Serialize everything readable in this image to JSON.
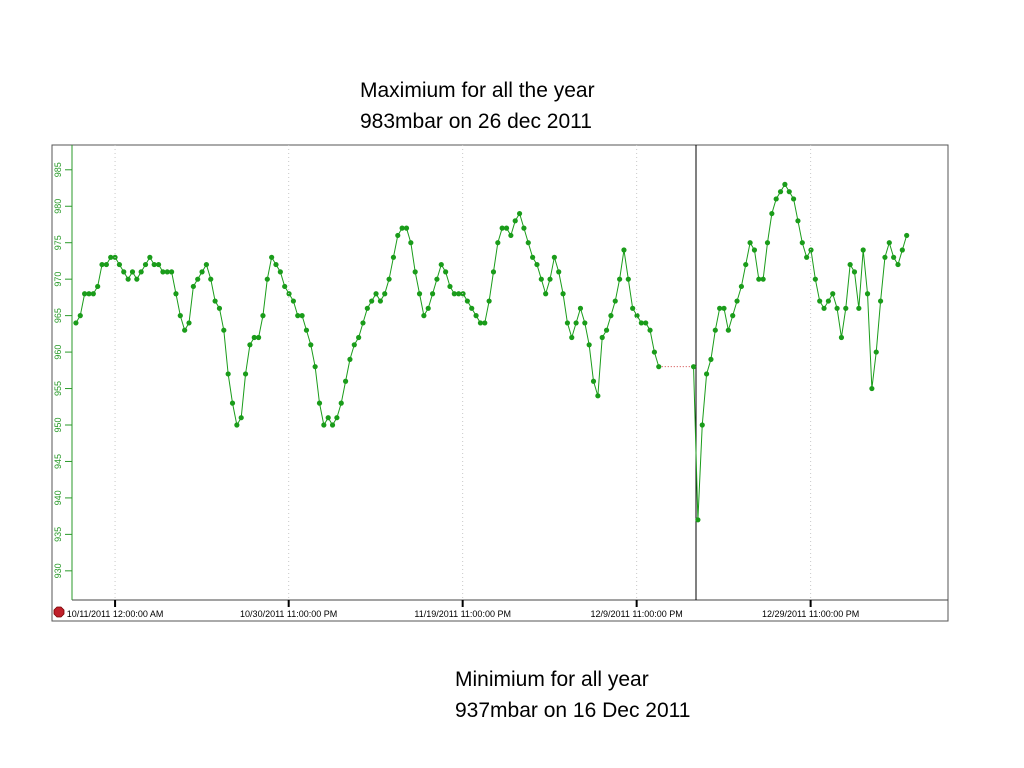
{
  "chart_data": {
    "type": "line",
    "annotations": [
      "Maximium for all the year",
      "983mbar on 26 dec 2011",
      "Minimium for all year",
      "937mbar on 16 Dec 2011"
    ],
    "color": "#1a9c1a",
    "gap_color": "#d04040",
    "grid": true,
    "xlim": [
      "2011-10-03T18:00",
      "2012-01-14T18:00"
    ],
    "xticks": [
      {
        "value": "2011-10-11T00:00",
        "label": "10/11/2011 12:00:00 AM"
      },
      {
        "value": "2011-10-30T23:00",
        "label": "10/30/2011 11:00:00 PM"
      },
      {
        "value": "2011-11-19T23:00",
        "label": "11/19/2011 11:00:00 PM"
      },
      {
        "value": "2011-12-09T23:00",
        "label": "12/9/2011 11:00:00 PM"
      },
      {
        "value": "2011-12-29T23:00",
        "label": "12/29/2011 11:00:00 PM"
      }
    ],
    "ylim": [
      926,
      988.4
    ],
    "yticks": [
      930,
      935,
      940,
      945,
      950,
      955,
      960,
      965,
      970,
      975,
      980,
      985
    ],
    "x": [
      "2011-10-06T12:00",
      "2011-10-07T00:00",
      "2011-10-07T12:00",
      "2011-10-08T00:00",
      "2011-10-08T12:00",
      "2011-10-09T00:00",
      "2011-10-09T12:00",
      "2011-10-10T00:00",
      "2011-10-10T12:00",
      "2011-10-11T00:00",
      "2011-10-11T12:00",
      "2011-10-12T00:00",
      "2011-10-12T12:00",
      "2011-10-13T00:00",
      "2011-10-13T12:00",
      "2011-10-14T00:00",
      "2011-10-14T12:00",
      "2011-10-15T00:00",
      "2011-10-15T12:00",
      "2011-10-16T00:00",
      "2011-10-16T12:00",
      "2011-10-17T00:00",
      "2011-10-17T12:00",
      "2011-10-18T00:00",
      "2011-10-18T12:00",
      "2011-10-19T00:00",
      "2011-10-19T12:00",
      "2011-10-20T00:00",
      "2011-10-20T12:00",
      "2011-10-21T00:00",
      "2011-10-21T12:00",
      "2011-10-22T00:00",
      "2011-10-22T12:00",
      "2011-10-23T00:00",
      "2011-10-23T12:00",
      "2011-10-24T00:00",
      "2011-10-24T12:00",
      "2011-10-25T00:00",
      "2011-10-25T12:00",
      "2011-10-26T00:00",
      "2011-10-26T12:00",
      "2011-10-27T00:00",
      "2011-10-27T12:00",
      "2011-10-28T00:00",
      "2011-10-28T12:00",
      "2011-10-29T00:00",
      "2011-10-29T12:00",
      "2011-10-30T00:00",
      "2011-10-30T12:00",
      "2011-10-31T00:00",
      "2011-10-31T12:00",
      "2011-11-01T00:00",
      "2011-11-01T12:00",
      "2011-11-02T00:00",
      "2011-11-02T12:00",
      "2011-11-03T00:00",
      "2011-11-03T12:00",
      "2011-11-04T00:00",
      "2011-11-04T12:00",
      "2011-11-05T00:00",
      "2011-11-05T12:00",
      "2011-11-06T00:00",
      "2011-11-06T12:00",
      "2011-11-07T00:00",
      "2011-11-07T12:00",
      "2011-11-08T00:00",
      "2011-11-08T12:00",
      "2011-11-09T00:00",
      "2011-11-09T12:00",
      "2011-11-10T00:00",
      "2011-11-10T12:00",
      "2011-11-11T00:00",
      "2011-11-11T12:00",
      "2011-11-12T00:00",
      "2011-11-12T12:00",
      "2011-11-13T00:00",
      "2011-11-13T12:00",
      "2011-11-14T00:00",
      "2011-11-14T12:00",
      "2011-11-15T00:00",
      "2011-11-15T12:00",
      "2011-11-16T00:00",
      "2011-11-16T12:00",
      "2011-11-17T00:00",
      "2011-11-17T12:00",
      "2011-11-18T00:00",
      "2011-11-18T12:00",
      "2011-11-19T00:00",
      "2011-11-19T12:00",
      "2011-11-20T00:00",
      "2011-11-20T12:00",
      "2011-11-21T00:00",
      "2011-11-21T12:00",
      "2011-11-22T00:00",
      "2011-11-22T12:00",
      "2011-11-23T00:00",
      "2011-11-23T12:00",
      "2011-11-24T00:00",
      "2011-11-24T12:00",
      "2011-11-25T00:00",
      "2011-11-25T12:00",
      "2011-11-26T00:00",
      "2011-11-26T12:00",
      "2011-11-27T00:00",
      "2011-11-27T12:00",
      "2011-11-28T00:00",
      "2011-11-28T12:00",
      "2011-11-29T00:00",
      "2011-11-29T12:00",
      "2011-11-30T00:00",
      "2011-11-30T12:00",
      "2011-12-01T00:00",
      "2011-12-01T12:00",
      "2011-12-02T00:00",
      "2011-12-02T12:00",
      "2011-12-03T00:00",
      "2011-12-03T12:00",
      "2011-12-04T00:00",
      "2011-12-04T12:00",
      "2011-12-05T00:00",
      "2011-12-05T12:00",
      "2011-12-06T00:00",
      "2011-12-06T12:00",
      "2011-12-07T00:00",
      "2011-12-07T12:00",
      "2011-12-08T00:00",
      "2011-12-08T12:00",
      "2011-12-09T00:00",
      "2011-12-09T12:00",
      "2011-12-10T00:00",
      "2011-12-10T12:00",
      "2011-12-11T00:00",
      "2011-12-11T12:00",
      "2011-12-12T00:00",
      "2011-12-12T12:00",
      "2011-12-13T00:00",
      "2011-12-13T12:00",
      "2011-12-14T00:00",
      "2011-12-14T12:00",
      "2011-12-15T00:00",
      "2011-12-15T12:00",
      "2011-12-16T00:00",
      "2011-12-16T12:00",
      "2011-12-17T00:00",
      "2011-12-17T12:00",
      "2011-12-18T00:00",
      "2011-12-18T12:00",
      "2011-12-19T00:00",
      "2011-12-19T12:00",
      "2011-12-20T00:00",
      "2011-12-20T12:00",
      "2011-12-21T00:00",
      "2011-12-21T12:00",
      "2011-12-22T00:00",
      "2011-12-22T12:00",
      "2011-12-23T00:00",
      "2011-12-23T12:00",
      "2011-12-24T00:00",
      "2011-12-24T12:00",
      "2011-12-25T00:00",
      "2011-12-25T12:00",
      "2011-12-26T00:00",
      "2011-12-26T12:00",
      "2011-12-27T00:00",
      "2011-12-27T12:00",
      "2011-12-28T00:00",
      "2011-12-28T12:00",
      "2011-12-29T00:00",
      "2011-12-29T12:00",
      "2011-12-30T00:00",
      "2011-12-30T12:00",
      "2011-12-31T00:00",
      "2011-12-31T12:00",
      "2012-01-01T00:00",
      "2012-01-01T12:00",
      "2012-01-02T00:00",
      "2012-01-02T12:00",
      "2012-01-03T00:00",
      "2012-01-03T12:00",
      "2012-01-04T00:00",
      "2012-01-04T12:00",
      "2012-01-05T00:00",
      "2012-01-05T12:00",
      "2012-01-06T00:00",
      "2012-01-06T12:00",
      "2012-01-07T00:00",
      "2012-01-07T12:00",
      "2012-01-08T00:00",
      "2012-01-08T12:00",
      "2012-01-09T00:00",
      "2012-01-09T12:00",
      "2012-01-10T00:00"
    ],
    "values": [
      964,
      965,
      968,
      968,
      968,
      969,
      972,
      972,
      973,
      973,
      972,
      971,
      970,
      971,
      970,
      971,
      972,
      973,
      972,
      972,
      971,
      971,
      971,
      968,
      965,
      963,
      964,
      969,
      970,
      971,
      972,
      970,
      967,
      966,
      963,
      957,
      953,
      950,
      951,
      957,
      961,
      962,
      962,
      965,
      970,
      973,
      972,
      971,
      969,
      968,
      967,
      965,
      965,
      963,
      961,
      958,
      953,
      950,
      951,
      950,
      951,
      953,
      956,
      959,
      961,
      962,
      964,
      966,
      967,
      968,
      967,
      968,
      970,
      973,
      976,
      977,
      977,
      975,
      971,
      968,
      965,
      966,
      968,
      970,
      972,
      971,
      969,
      968,
      968,
      968,
      967,
      966,
      965,
      964,
      964,
      967,
      971,
      975,
      977,
      977,
      976,
      978,
      979,
      977,
      975,
      973,
      972,
      970,
      968,
      970,
      973,
      971,
      968,
      964,
      962,
      964,
      966,
      964,
      961,
      956,
      954,
      962,
      963,
      965,
      967,
      970,
      974,
      970,
      966,
      965,
      964,
      964,
      963,
      960,
      958,
      null,
      null,
      null,
      null,
      null,
      null,
      null,
      958,
      937,
      950,
      957,
      959,
      963,
      966,
      966,
      963,
      965,
      967,
      969,
      972,
      975,
      974,
      970,
      970,
      975,
      979,
      981,
      982,
      983,
      982,
      981,
      978,
      975,
      973,
      974,
      970,
      967,
      966,
      967,
      968,
      966,
      962,
      966,
      972,
      971,
      966,
      974,
      968,
      955,
      960,
      967,
      973,
      975,
      973,
      972,
      974,
      976
    ]
  }
}
